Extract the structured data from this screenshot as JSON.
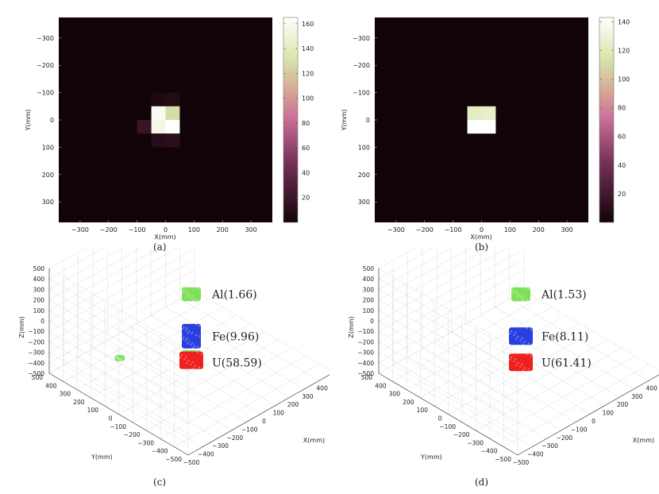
{
  "chart_data": [
    {
      "type": "heatmap",
      "caption": "(a)",
      "xlabel": "X(mm)",
      "ylabel": "Y(mm)",
      "xlim": [
        -375,
        375
      ],
      "ylim": [
        -375,
        375
      ],
      "x_ticks": [
        "−300",
        "−200",
        "−100",
        "0",
        "100",
        "200",
        "300"
      ],
      "y_ticks": [
        "−300",
        "−200",
        "−100",
        "0",
        "100",
        "200",
        "300"
      ],
      "cell_size_mm": 50,
      "colorbar_ticks": [
        "20",
        "40",
        "60",
        "80",
        "100",
        "120",
        "140",
        "160"
      ],
      "colorbar_range": [
        0,
        165
      ],
      "cells": [
        {
          "x": -25,
          "y": -75,
          "v": 6
        },
        {
          "x": 25,
          "y": -75,
          "v": 8
        },
        {
          "x": -25,
          "y": -25,
          "v": 160
        },
        {
          "x": 25,
          "y": -25,
          "v": 128
        },
        {
          "x": -75,
          "y": 25,
          "v": 18
        },
        {
          "x": -25,
          "y": 25,
          "v": 155
        },
        {
          "x": 25,
          "y": 25,
          "v": 165
        },
        {
          "x": -25,
          "y": 75,
          "v": 10
        },
        {
          "x": 25,
          "y": 75,
          "v": 12
        }
      ]
    },
    {
      "type": "heatmap",
      "caption": "(b)",
      "xlabel": "X(mm)",
      "ylabel": "Y(mm)",
      "xlim": [
        -375,
        375
      ],
      "ylim": [
        -375,
        375
      ],
      "x_ticks": [
        "−300",
        "−200",
        "−100",
        "0",
        "100",
        "200",
        "300"
      ],
      "y_ticks": [
        "−300",
        "−200",
        "−100",
        "0",
        "100",
        "200",
        "300"
      ],
      "cell_size_mm": 50,
      "colorbar_ticks": [
        "20",
        "40",
        "60",
        "80",
        "100",
        "120",
        "140"
      ],
      "colorbar_range": [
        0,
        143
      ],
      "cells": [
        {
          "x": -25,
          "y": -25,
          "v": 122
        },
        {
          "x": 25,
          "y": -25,
          "v": 125
        },
        {
          "x": -25,
          "y": 25,
          "v": 143
        },
        {
          "x": 25,
          "y": 25,
          "v": 143
        }
      ]
    },
    {
      "type": "scatter",
      "subtype": "3d-voxel",
      "caption": "(c)",
      "xlabel": "X(mm)",
      "ylabel": "Y(mm)",
      "zlabel": "Z(mm)",
      "x_ticks": [
        "−500",
        "−400",
        "−300",
        "−200",
        "−100",
        "0",
        "100",
        "200",
        "300",
        "400",
        "5("
      ],
      "y_ticks": [
        "500",
        "400",
        "300",
        "200",
        "100",
        "0",
        "−100",
        "−200",
        "−300",
        "−400",
        "−500"
      ],
      "z_ticks": [
        "500",
        "400",
        "300",
        "200",
        "100",
        "0",
        "−100",
        "−200",
        "−300",
        "−400",
        "−500"
      ],
      "annotations": [
        {
          "label": "Al(1.66)",
          "z": 250
        },
        {
          "label": "Fe(9.96)",
          "z": -150
        },
        {
          "label": "U(58.59)",
          "z": -400
        }
      ],
      "colors": {
        "Al": "#7ee05a",
        "Fe": "#2a3fe0",
        "U": "#ee2020"
      },
      "series": [
        {
          "name": "Al",
          "points": [
            [
              0,
              0,
              250
            ],
            [
              -350,
              150,
              -200
            ],
            [
              0,
              0,
              -100
            ],
            [
              0,
              0,
              -350
            ]
          ]
        },
        {
          "name": "Fe",
          "points": [
            [
              0,
              0,
              -100
            ],
            [
              0,
              0,
              -200
            ]
          ]
        },
        {
          "name": "U",
          "points": [
            [
              0,
              0,
              -380
            ]
          ]
        }
      ]
    },
    {
      "type": "scatter",
      "subtype": "3d-voxel",
      "caption": "(d)",
      "xlabel": "X(mm)",
      "ylabel": "Y(mm)",
      "zlabel": "Z(mm)",
      "x_ticks": [
        "−500",
        "−400",
        "−300",
        "−200",
        "−100",
        "0",
        "100",
        "200",
        "300",
        "400",
        "500"
      ],
      "y_ticks": [
        "500",
        "400",
        "300",
        "200",
        "100",
        "0",
        "−100",
        "−200",
        "−300",
        "−400",
        "−500"
      ],
      "z_ticks": [
        "500",
        "400",
        "300",
        "200",
        "100",
        "0",
        "−100",
        "−200",
        "−300",
        "−400",
        "−500"
      ],
      "annotations": [
        {
          "label": "Al(1.53)",
          "z": 250
        },
        {
          "label": "Fe(8.11)",
          "z": -150
        },
        {
          "label": "U(61.41)",
          "z": -400
        }
      ],
      "colors": {
        "Al": "#7ee05a",
        "Fe": "#2a3fe0",
        "U": "#ee2020"
      },
      "series": [
        {
          "name": "Al",
          "points": [
            [
              0,
              0,
              250
            ]
          ]
        },
        {
          "name": "Fe",
          "points": [
            [
              0,
              0,
              -150
            ]
          ]
        },
        {
          "name": "U",
          "points": [
            [
              0,
              0,
              -400
            ]
          ]
        }
      ]
    }
  ]
}
